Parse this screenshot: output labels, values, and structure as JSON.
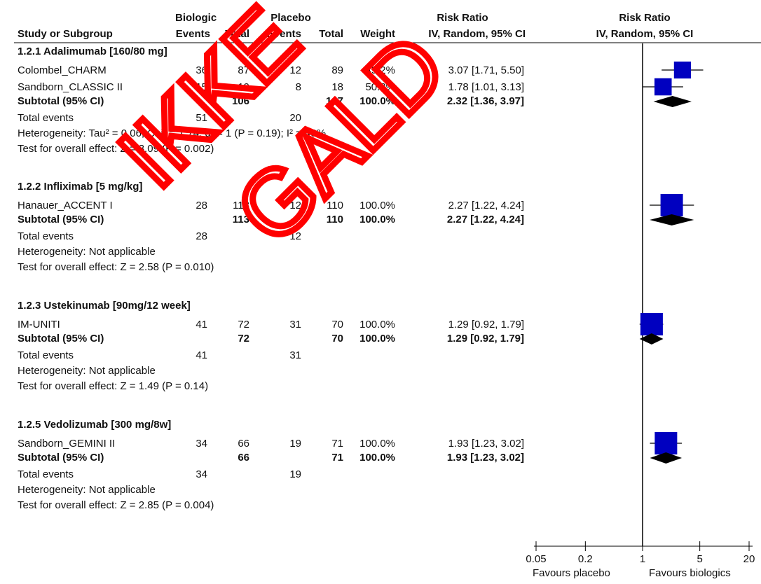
{
  "header": {
    "group1": "Biologic",
    "group2": "Placebo",
    "effect_title": "Risk Ratio",
    "plot_title": "Risk Ratio",
    "study_col": "Study or Subgroup",
    "events1": "Events",
    "total1": "Total",
    "events2": "Events",
    "total2": "Total",
    "weight": "Weight",
    "method": "IV, Random, 95% CI",
    "plot_method": "IV, Random, 95% CI"
  },
  "axis": {
    "ticks": [
      "0.05",
      "0.2",
      "1",
      "5",
      "20"
    ],
    "favours_left": "Favours placebo",
    "favours_right": "Favours  biologics"
  },
  "watermark": {
    "line1": "IKKE",
    "line2": "GALD"
  },
  "colors": {
    "study_marker": "#0000c0",
    "diamond": "#000000",
    "watermark": "#ff0000"
  },
  "subgroups": [
    {
      "name": "1.2.1 Adalimumab [160/80 mg]",
      "studies": [
        {
          "name": "Colombel_CHARM",
          "e1": "36",
          "t1": "87",
          "e2": "12",
          "t2": "89",
          "weight": "49.2%",
          "ci_text": "3.07 [1.71, 5.50]"
        },
        {
          "name": "Sandborn_CLASSIC II",
          "e1": "15",
          "t1": "19",
          "e2": "8",
          "t2": "18",
          "weight": "50.8%",
          "ci_text": "1.78 [1.01, 3.13]"
        }
      ],
      "subtotal": {
        "label": "Subtotal (95% CI)",
        "t1": "106",
        "t2": "107",
        "weight": "100.0%",
        "ci_text": "2.32 [1.36, 3.97]"
      },
      "total_events": {
        "label": "Total events",
        "e1": "51",
        "e2": "20"
      },
      "heterogeneity": "Heterogeneity: Tau² = 0.06; Chi² = 1.74, df = 1 (P = 0.19); I² = 43%",
      "overall": "Test for overall effect: Z = 3.09 (P = 0.002)"
    },
    {
      "name": "1.2.2 Infliximab [5 mg/kg]",
      "studies": [
        {
          "name": "Hanauer_ACCENT I",
          "e1": "28",
          "t1": "113",
          "e2": "12",
          "t2": "110",
          "weight": "100.0%",
          "ci_text": "2.27 [1.22, 4.24]"
        }
      ],
      "subtotal": {
        "label": "Subtotal (95% CI)",
        "t1": "113",
        "t2": "110",
        "weight": "100.0%",
        "ci_text": "2.27 [1.22, 4.24]"
      },
      "total_events": {
        "label": "Total events",
        "e1": "28",
        "e2": "12"
      },
      "heterogeneity": "Heterogeneity: Not applicable",
      "overall": "Test for overall effect: Z = 2.58 (P = 0.010)"
    },
    {
      "name": "1.2.3 Ustekinumab [90mg/12 week]",
      "studies": [
        {
          "name": "IM-UNITI",
          "e1": "41",
          "t1": "72",
          "e2": "31",
          "t2": "70",
          "weight": "100.0%",
          "ci_text": "1.29 [0.92, 1.79]"
        }
      ],
      "subtotal": {
        "label": "Subtotal (95% CI)",
        "t1": "72",
        "t2": "70",
        "weight": "100.0%",
        "ci_text": "1.29 [0.92, 1.79]"
      },
      "total_events": {
        "label": "Total events",
        "e1": "41",
        "e2": "31"
      },
      "heterogeneity": "Heterogeneity: Not applicable",
      "overall": "Test for overall effect: Z = 1.49 (P = 0.14)"
    },
    {
      "name": "1.2.5 Vedolizumab [300 mg/8w]",
      "studies": [
        {
          "name": "Sandborn_GEMINI II",
          "e1": "34",
          "t1": "66",
          "e2": "19",
          "t2": "71",
          "weight": "100.0%",
          "ci_text": "1.93 [1.23, 3.02]"
        }
      ],
      "subtotal": {
        "label": "Subtotal (95% CI)",
        "t1": "66",
        "t2": "71",
        "weight": "100.0%",
        "ci_text": "1.93 [1.23, 3.02]"
      },
      "total_events": {
        "label": "Total events",
        "e1": "34",
        "e2": "19"
      },
      "heterogeneity": "Heterogeneity: Not applicable",
      "overall": "Test for overall effect: Z = 2.85 (P = 0.004)"
    }
  ],
  "chart_data": {
    "type": "forest",
    "scale": "log",
    "xlim": [
      0.05,
      20
    ],
    "x_ticks": [
      0.05,
      0.2,
      1,
      5,
      20
    ],
    "null_line": 1,
    "studies": [
      {
        "subgroup": "1.2.1 Adalimumab [160/80 mg]",
        "name": "Colombel_CHARM",
        "rr": 3.07,
        "lo": 1.71,
        "hi": 5.5,
        "weight": 49.2
      },
      {
        "subgroup": "1.2.1 Adalimumab [160/80 mg]",
        "name": "Sandborn_CLASSIC II",
        "rr": 1.78,
        "lo": 1.01,
        "hi": 3.13,
        "weight": 50.8
      },
      {
        "subgroup": "1.2.2 Infliximab [5 mg/kg]",
        "name": "Hanauer_ACCENT I",
        "rr": 2.27,
        "lo": 1.22,
        "hi": 4.24,
        "weight": 100.0
      },
      {
        "subgroup": "1.2.3 Ustekinumab [90mg/12 week]",
        "name": "IM-UNITI",
        "rr": 1.29,
        "lo": 0.92,
        "hi": 1.79,
        "weight": 100.0
      },
      {
        "subgroup": "1.2.5 Vedolizumab [300 mg/8w]",
        "name": "Sandborn_GEMINI II",
        "rr": 1.93,
        "lo": 1.23,
        "hi": 3.02,
        "weight": 100.0
      }
    ],
    "subtotals": [
      {
        "subgroup": "1.2.1 Adalimumab [160/80 mg]",
        "rr": 2.32,
        "lo": 1.36,
        "hi": 3.97
      },
      {
        "subgroup": "1.2.2 Infliximab [5 mg/kg]",
        "rr": 2.27,
        "lo": 1.22,
        "hi": 4.24
      },
      {
        "subgroup": "1.2.3 Ustekinumab [90mg/12 week]",
        "rr": 1.29,
        "lo": 0.92,
        "hi": 1.79
      },
      {
        "subgroup": "1.2.5 Vedolizumab [300 mg/8w]",
        "rr": 1.93,
        "lo": 1.23,
        "hi": 3.02
      }
    ]
  }
}
